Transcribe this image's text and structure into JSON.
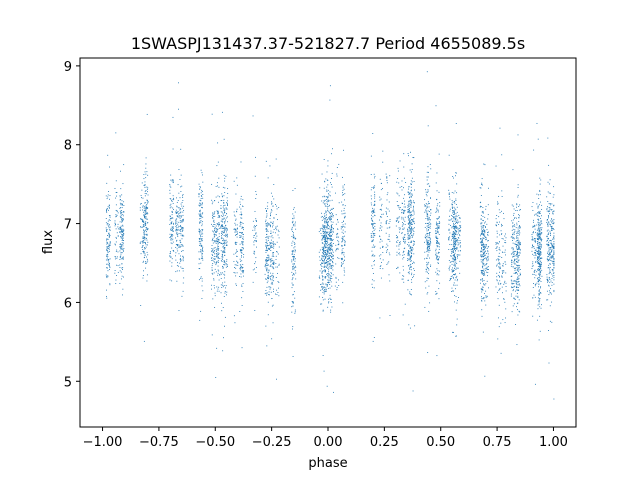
{
  "chart_data": {
    "type": "scatter",
    "title": "1SWASPJ131437.37-521827.7 Period 4655089.5s",
    "xlabel": "phase",
    "ylabel": "flux",
    "xlim": [
      -1.1,
      1.1
    ],
    "ylim": [
      4.42,
      9.1
    ],
    "xticks": [
      -1.0,
      -0.75,
      -0.5,
      -0.25,
      0.0,
      0.25,
      0.5,
      0.75,
      1.0
    ],
    "xtick_labels": [
      "−1.00",
      "−0.75",
      "−0.50",
      "−0.25",
      "0.00",
      "0.25",
      "0.50",
      "0.75",
      "1.00"
    ],
    "yticks": [
      5,
      6,
      7,
      8,
      9
    ],
    "ytick_labels": [
      "5",
      "6",
      "7",
      "8",
      "9"
    ],
    "grid": false,
    "legend": "none",
    "point_color": "#1f77b4",
    "light_curve": {
      "phase_range": [
        -1.0,
        1.0
      ],
      "mean_profile": [
        {
          "phase": 0.0,
          "flux": 6.75
        },
        {
          "phase": 0.1,
          "flux": 6.9
        },
        {
          "phase": 0.2,
          "flux": 7.05
        },
        {
          "phase": 0.3,
          "flux": 7.0
        },
        {
          "phase": 0.4,
          "flux": 6.9
        },
        {
          "phase": 0.5,
          "flux": 6.85
        },
        {
          "phase": 0.6,
          "flux": 6.75
        },
        {
          "phase": 0.7,
          "flux": 6.65
        },
        {
          "phase": 0.8,
          "flux": 6.6
        },
        {
          "phase": 0.9,
          "flux": 6.6
        },
        {
          "phase": 1.0,
          "flux": 6.75
        }
      ],
      "scatter_sigma": 0.33,
      "min_flux": 4.65,
      "max_flux": 8.95
    }
  }
}
